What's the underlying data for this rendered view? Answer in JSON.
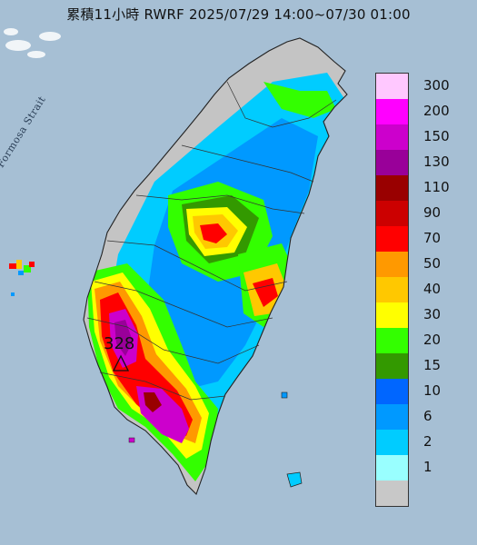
{
  "title": "累積11小時 RWRF 2025/07/29 14:00~07/30 01:00",
  "strait_label": "Formosa Strait",
  "max_label": "328",
  "legend": {
    "levels": [
      {
        "label": "300",
        "color": "#ffc8ff"
      },
      {
        "label": "200",
        "color": "#ff00ff"
      },
      {
        "label": "150",
        "color": "#cc00cc"
      },
      {
        "label": "130",
        "color": "#990099"
      },
      {
        "label": "110",
        "color": "#990000"
      },
      {
        "label": "90",
        "color": "#cc0000"
      },
      {
        "label": "70",
        "color": "#ff0000"
      },
      {
        "label": "50",
        "color": "#ff9900"
      },
      {
        "label": "40",
        "color": "#ffc800"
      },
      {
        "label": "30",
        "color": "#ffff00"
      },
      {
        "label": "20",
        "color": "#33ff00"
      },
      {
        "label": "15",
        "color": "#339900"
      },
      {
        "label": "10",
        "color": "#0066ff"
      },
      {
        "label": "6",
        "color": "#0099ff"
      },
      {
        "label": "2",
        "color": "#00ccff"
      },
      {
        "label": "1",
        "color": "#99ffff"
      },
      {
        "label": "",
        "color": "#c8c8c8"
      }
    ]
  }
}
